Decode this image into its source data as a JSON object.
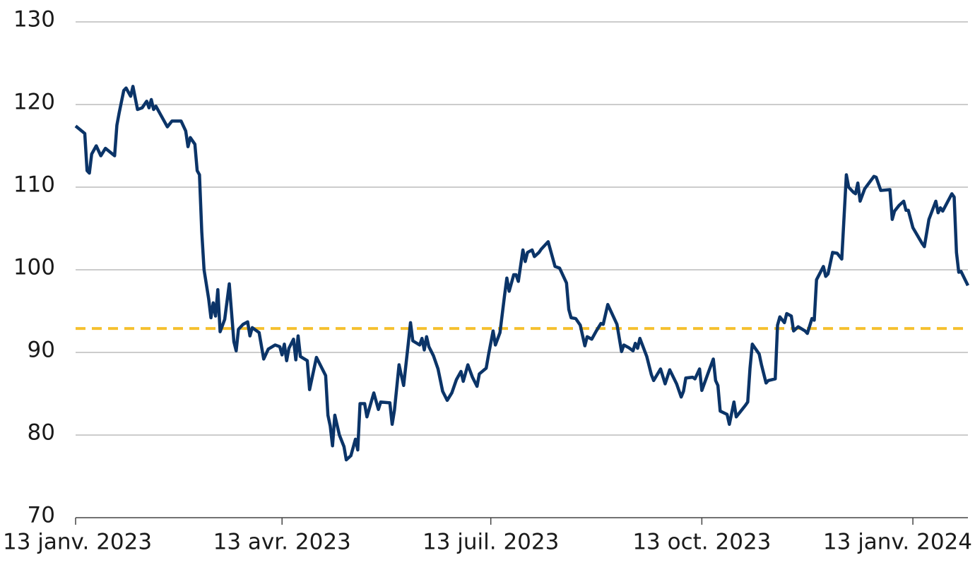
{
  "chart_data": {
    "type": "line",
    "x": [
      "2023-01-13",
      "2023-01-17",
      "2023-01-18",
      "2023-01-19",
      "2023-01-20",
      "2023-01-22",
      "2023-01-24",
      "2023-01-26",
      "2023-01-30",
      "2023-01-31",
      "2023-02-01",
      "2023-02-03",
      "2023-02-04",
      "2023-02-06",
      "2023-02-07",
      "2023-02-09",
      "2023-02-11",
      "2023-02-13",
      "2023-02-14",
      "2023-02-15",
      "2023-02-16",
      "2023-02-17",
      "2023-02-22",
      "2023-02-24",
      "2023-02-28",
      "2023-03-02",
      "2023-03-03",
      "2023-03-04",
      "2023-03-06",
      "2023-03-07",
      "2023-03-08",
      "2023-03-09",
      "2023-03-10",
      "2023-03-12",
      "2023-03-13",
      "2023-03-14",
      "2023-03-15",
      "2023-03-16",
      "2023-03-17",
      "2023-03-19",
      "2023-03-21",
      "2023-03-23",
      "2023-03-24",
      "2023-03-25",
      "2023-03-27",
      "2023-03-29",
      "2023-03-30",
      "2023-03-31",
      "2023-04-03",
      "2023-04-05",
      "2023-04-07",
      "2023-04-10",
      "2023-04-12",
      "2023-04-13",
      "2023-04-14",
      "2023-04-15",
      "2023-04-16",
      "2023-04-18",
      "2023-04-19",
      "2023-04-20",
      "2023-04-21",
      "2023-04-24",
      "2023-04-25",
      "2023-04-28",
      "2023-05-02",
      "2023-05-03",
      "2023-05-04",
      "2023-05-05",
      "2023-05-06",
      "2023-05-08",
      "2023-05-10",
      "2023-05-11",
      "2023-05-13",
      "2023-05-15",
      "2023-05-16",
      "2023-05-17",
      "2023-05-19",
      "2023-05-20",
      "2023-05-23",
      "2023-05-25",
      "2023-05-26",
      "2023-05-30",
      "2023-05-31",
      "2023-06-01",
      "2023-06-03",
      "2023-06-05",
      "2023-06-07",
      "2023-06-08",
      "2023-06-09",
      "2023-06-12",
      "2023-06-13",
      "2023-06-14",
      "2023-06-15",
      "2023-06-16",
      "2023-06-18",
      "2023-06-20",
      "2023-06-22",
      "2023-06-24",
      "2023-06-26",
      "2023-06-28",
      "2023-06-30",
      "2023-07-01",
      "2023-07-03",
      "2023-07-05",
      "2023-07-07",
      "2023-07-08",
      "2023-07-11",
      "2023-07-12",
      "2023-07-14",
      "2023-07-15",
      "2023-07-17",
      "2023-07-19",
      "2023-07-20",
      "2023-07-21",
      "2023-07-23",
      "2023-07-24",
      "2023-07-25",
      "2023-07-27",
      "2023-07-28",
      "2023-07-29",
      "2023-07-31",
      "2023-08-01",
      "2023-08-03",
      "2023-08-04",
      "2023-08-07",
      "2023-08-10",
      "2023-08-12",
      "2023-08-15",
      "2023-08-16",
      "2023-08-17",
      "2023-08-19",
      "2023-08-21",
      "2023-08-23",
      "2023-08-24",
      "2023-08-26",
      "2023-08-28",
      "2023-08-30",
      "2023-08-31",
      "2023-09-02",
      "2023-09-06",
      "2023-09-08",
      "2023-09-09",
      "2023-09-11",
      "2023-09-13",
      "2023-09-14",
      "2023-09-15",
      "2023-09-16",
      "2023-09-19",
      "2023-09-21",
      "2023-09-22",
      "2023-09-25",
      "2023-09-27",
      "2023-09-29",
      "2023-10-02",
      "2023-10-04",
      "2023-10-05",
      "2023-10-06",
      "2023-10-09",
      "2023-10-10",
      "2023-10-12",
      "2023-10-13",
      "2023-10-16",
      "2023-10-18",
      "2023-10-19",
      "2023-10-20",
      "2023-10-21",
      "2023-10-24",
      "2023-10-25",
      "2023-10-27",
      "2023-10-28",
      "2023-10-30",
      "2023-11-01",
      "2023-11-02",
      "2023-11-03",
      "2023-11-04",
      "2023-11-07",
      "2023-11-08",
      "2023-11-10",
      "2023-11-11",
      "2023-11-14",
      "2023-11-15",
      "2023-11-16",
      "2023-11-18",
      "2023-11-19",
      "2023-11-21",
      "2023-11-22",
      "2023-11-24",
      "2023-11-27",
      "2023-11-28",
      "2023-11-30",
      "2023-12-01",
      "2023-12-02",
      "2023-12-05",
      "2023-12-06",
      "2023-12-07",
      "2023-12-09",
      "2023-12-11",
      "2023-12-13",
      "2023-12-15",
      "2023-12-16",
      "2023-12-18",
      "2023-12-19",
      "2023-12-20",
      "2023-12-21",
      "2023-12-23",
      "2023-12-27",
      "2023-12-28",
      "2023-12-30",
      "2024-01-03",
      "2024-01-04",
      "2024-01-05",
      "2024-01-07",
      "2024-01-09",
      "2024-01-10",
      "2024-01-11",
      "2024-01-13",
      "2024-01-17",
      "2024-01-18",
      "2024-01-20",
      "2024-01-23",
      "2024-01-24",
      "2024-01-25",
      "2024-01-26",
      "2024-01-30",
      "2024-01-31",
      "2024-02-01",
      "2024-02-02",
      "2024-02-03",
      "2024-02-06"
    ],
    "series": [
      {
        "color": "#0b3468",
        "values": [
          117.4,
          116.5,
          112,
          111.7,
          114,
          115,
          113.8,
          114.7,
          113.8,
          117.5,
          119,
          121.7,
          122,
          121,
          122.2,
          119.4,
          119.6,
          120.4,
          119.6,
          120.6,
          119.4,
          119.8,
          117.3,
          118,
          118,
          116.8,
          114.9,
          116,
          115.2,
          112,
          111.5,
          104.6,
          100,
          96.5,
          94.2,
          96,
          94.4,
          97.6,
          92.5,
          94,
          98.3,
          91.3,
          90.2,
          92.8,
          93.4,
          93.7,
          92,
          93,
          92.4,
          89.2,
          90.4,
          90.9,
          90.7,
          89.7,
          91,
          89,
          90.5,
          91.6,
          89.1,
          92,
          89.5,
          89,
          85.5,
          89.4,
          87.2,
          82.4,
          81.1,
          78.7,
          82.4,
          80,
          78.6,
          77,
          77.5,
          79.5,
          78.2,
          83.8,
          83.8,
          82.2,
          85.1,
          83.1,
          84,
          83.9,
          81.3,
          83,
          88.5,
          86,
          91,
          93.6,
          91.4,
          90.9,
          91.7,
          90.3,
          91.9,
          90.7,
          89.6,
          88,
          85.3,
          84.2,
          85.1,
          86.7,
          87.7,
          86.5,
          88.5,
          87,
          85.9,
          87.4,
          88.1,
          89.7,
          92.6,
          90.9,
          92.4,
          96.9,
          99,
          97.4,
          99.4,
          99.4,
          98.6,
          102.4,
          101,
          102.1,
          102.4,
          101.6,
          102.1,
          102.5,
          103.4,
          100.4,
          100.2,
          98.4,
          95.2,
          94.2,
          94.1,
          93.3,
          90.8,
          91.9,
          91.6,
          92.6,
          93.5,
          93.4,
          95.8,
          93.4,
          90.1,
          90.9,
          90.6,
          90.2,
          91.1,
          90.5,
          91.7,
          89.5,
          87.3,
          86.6,
          88,
          86.2,
          87.9,
          86.2,
          84.6,
          85.3,
          86.9,
          87,
          86.8,
          88,
          85.4,
          87.7,
          89.2,
          86.6,
          86,
          82.9,
          82.5,
          81.3,
          84,
          82.2,
          82.9,
          83.6,
          84,
          88.1,
          91,
          89.8,
          88.5,
          86.3,
          86.6,
          86.8,
          93.3,
          94.3,
          93.6,
          94.7,
          94.4,
          92.6,
          93.1,
          92.6,
          92.3,
          94.1,
          93.9,
          98.8,
          100.4,
          99.2,
          99.5,
          102.1,
          102,
          101.3,
          111.5,
          110,
          109.4,
          109.2,
          110.5,
          108.3,
          109.8,
          111.3,
          111.2,
          109.6,
          109.7,
          106.1,
          107.1,
          107.8,
          108.3,
          107.2,
          107.2,
          105.1,
          103.2,
          102.8,
          106.1,
          108.3,
          106.9,
          107.5,
          107.1,
          109.2,
          108.8,
          102.1,
          99.7,
          99.8,
          98.1
        ]
      }
    ],
    "reference_line": {
      "value": 92.9,
      "color": "#f5c02e"
    },
    "xlim": [
      "2023-01-13",
      "2024-02-06"
    ],
    "xticks": [
      {
        "value": "2023-01-13",
        "label": "13 janv. 2023"
      },
      {
        "value": "2023-04-13",
        "label": "13 avr. 2023"
      },
      {
        "value": "2023-07-13",
        "label": "13 juil. 2023"
      },
      {
        "value": "2023-10-13",
        "label": "13 oct. 2023"
      },
      {
        "value": "2024-01-13",
        "label": "13 janv. 2024"
      }
    ],
    "ylim": [
      70,
      130
    ],
    "yticks": [
      70,
      80,
      90,
      100,
      110,
      120,
      130
    ],
    "grid": true
  }
}
